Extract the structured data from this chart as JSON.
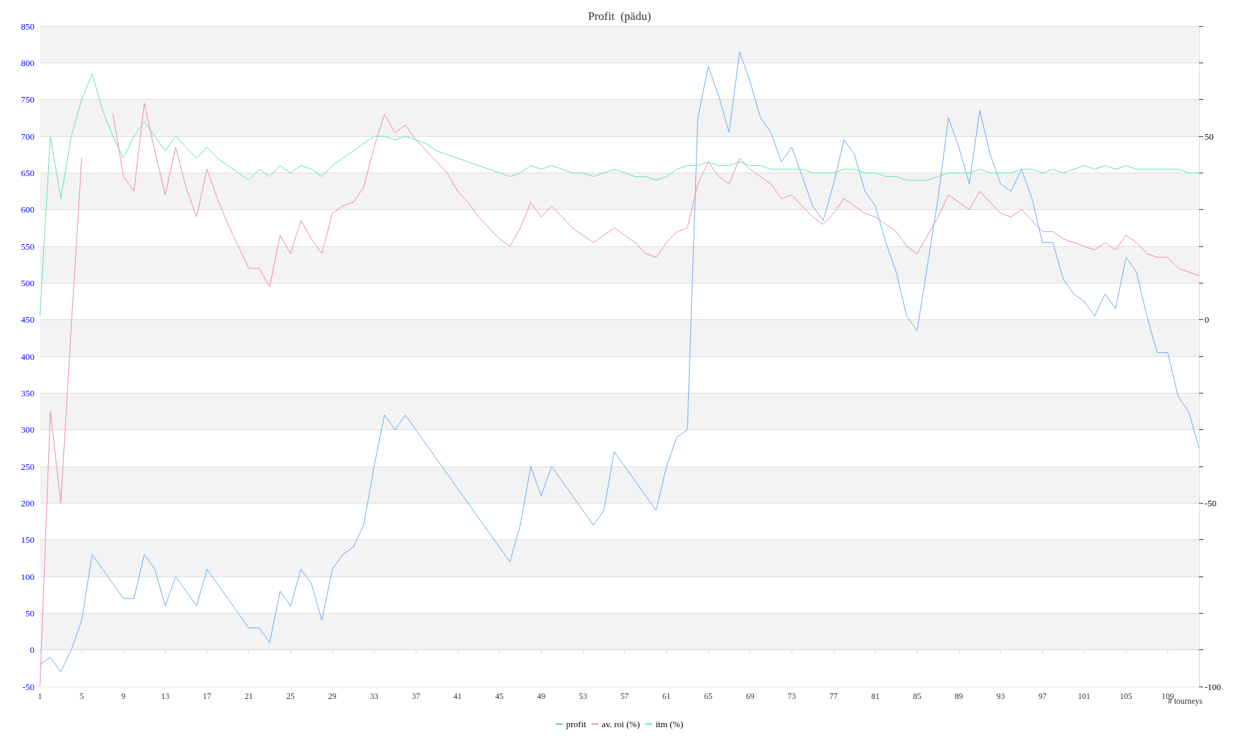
{
  "chart_data": {
    "type": "line",
    "title": "Profit  (pädu)",
    "xlabel": "# tourneys",
    "x": [
      1,
      2,
      3,
      4,
      5,
      6,
      7,
      8,
      9,
      10,
      11,
      12,
      13,
      14,
      15,
      16,
      17,
      18,
      19,
      20,
      21,
      22,
      23,
      24,
      25,
      26,
      27,
      28,
      29,
      30,
      31,
      32,
      33,
      34,
      35,
      36,
      37,
      38,
      39,
      40,
      41,
      42,
      43,
      44,
      45,
      46,
      47,
      48,
      49,
      50,
      51,
      52,
      53,
      54,
      55,
      56,
      57,
      58,
      59,
      60,
      61,
      62,
      63,
      64,
      65,
      66,
      67,
      68,
      69,
      70,
      71,
      72,
      73,
      74,
      75,
      76,
      77,
      78,
      79,
      80,
      81,
      82,
      83,
      84,
      85,
      86,
      87,
      88,
      89,
      90,
      91,
      92,
      93,
      94,
      95,
      96,
      97,
      98,
      99,
      100,
      101,
      102,
      103,
      104,
      105,
      106,
      107,
      108,
      109,
      110,
      111,
      112
    ],
    "series": [
      {
        "name": "profit",
        "color": "#6aaaf0",
        "values": [
          -20,
          -10,
          -30,
          0,
          40,
          130,
          110,
          90,
          70,
          70,
          130,
          110,
          60,
          100,
          80,
          60,
          110,
          90,
          70,
          50,
          30,
          30,
          10,
          80,
          60,
          110,
          90,
          40,
          110,
          130,
          140,
          170,
          250,
          320,
          300,
          320,
          300,
          280,
          260,
          240,
          220,
          200,
          180,
          160,
          140,
          120,
          170,
          250,
          210,
          250,
          230,
          210,
          190,
          170,
          190,
          270,
          250,
          230,
          210,
          190,
          250,
          290,
          300,
          725,
          795,
          755,
          705,
          815,
          775,
          725,
          705,
          665,
          685,
          645,
          605,
          585,
          635,
          695,
          675,
          625,
          605,
          555,
          515,
          455,
          435,
          525,
          615,
          725,
          685,
          635,
          735,
          675,
          635,
          625,
          655,
          615,
          555,
          555,
          505,
          485,
          475,
          455,
          485,
          465,
          535,
          515,
          455,
          405,
          405,
          345,
          325,
          275
        ]
      },
      {
        "name": "av. roi (%)",
        "color": "#f285b5",
        "axis": "y2",
        "values": [
          -100,
          -25,
          -50,
          -2,
          44,
          null,
          null,
          56,
          39,
          35,
          59,
          46,
          34,
          47,
          36,
          28,
          41,
          33,
          26,
          20,
          14,
          14,
          9,
          23,
          18,
          27,
          22,
          18,
          29,
          31,
          32,
          36,
          47,
          56,
          51,
          53,
          49,
          46,
          43,
          40,
          35,
          32,
          28,
          25,
          22,
          20,
          25,
          32,
          28,
          31,
          28,
          25,
          23,
          21,
          23,
          25,
          23,
          21,
          18,
          17,
          21,
          24,
          25,
          37,
          43,
          39,
          37,
          44,
          41,
          39,
          37,
          33,
          34,
          31,
          28,
          26,
          29,
          33,
          31,
          29,
          28,
          26,
          24,
          20,
          18,
          23,
          28,
          34,
          32,
          30,
          35,
          32,
          29,
          28,
          30,
          27,
          24,
          24,
          22,
          21,
          20,
          19,
          21,
          19,
          23,
          21,
          18,
          17,
          17,
          14,
          13,
          12
        ]
      },
      {
        "name": "itm (%)",
        "color": "#5ee3a6",
        "axis": "y2",
        "values": [
          1,
          50,
          33,
          50,
          60,
          67,
          57,
          50,
          44,
          50,
          54,
          50,
          46,
          50,
          47,
          44,
          47,
          44,
          42,
          40,
          38,
          41,
          39,
          42,
          40,
          42,
          41,
          39,
          42,
          44,
          46,
          48,
          50,
          50,
          49,
          50,
          49,
          48,
          46,
          45,
          44,
          43,
          42,
          41,
          40,
          39,
          40,
          42,
          41,
          42,
          41,
          40,
          40,
          39,
          40,
          41,
          40,
          39,
          39,
          38,
          39,
          41,
          42,
          42,
          43,
          42,
          42,
          43,
          42,
          42,
          41,
          41,
          41,
          41,
          40,
          40,
          40,
          41,
          41,
          40,
          40,
          39,
          39,
          38,
          38,
          38,
          39,
          40,
          40,
          40,
          41,
          40,
          40,
          40,
          41,
          41,
          40,
          41,
          40,
          41,
          42,
          41,
          42,
          41,
          42,
          41,
          41,
          41,
          41,
          41,
          40,
          40
        ]
      }
    ],
    "xlim": [
      1,
      112
    ],
    "xticks": [
      1,
      5,
      9,
      13,
      17,
      21,
      25,
      29,
      33,
      37,
      41,
      45,
      49,
      53,
      57,
      61,
      65,
      69,
      73,
      77,
      81,
      85,
      89,
      93,
      97,
      101,
      105,
      109
    ],
    "ylim": [
      -50,
      850
    ],
    "yticks": [
      -50,
      0,
      50,
      100,
      150,
      200,
      250,
      300,
      350,
      400,
      450,
      500,
      550,
      600,
      650,
      700,
      750,
      800,
      850
    ],
    "y2lim": [
      -100,
      80
    ],
    "y2ticks": [
      -100,
      {
        "value": -90,
        "label": null
      },
      {
        "value": -80,
        "label": null
      },
      {
        "value": -70,
        "label": null
      },
      {
        "value": -60,
        "label": null
      },
      -50,
      {
        "value": -40,
        "label": null
      },
      {
        "value": -30,
        "label": null
      },
      {
        "value": -20,
        "label": null
      },
      {
        "value": -10,
        "label": null
      },
      0,
      {
        "value": 10,
        "label": null
      },
      {
        "value": 20,
        "label": null
      },
      {
        "value": 30,
        "label": null
      },
      {
        "value": 40,
        "label": null
      },
      50,
      {
        "value": 60,
        "label": null
      },
      {
        "value": 70,
        "label": null
      },
      {
        "value": 80,
        "label": null
      }
    ],
    "grid": "y",
    "legend": "bottom",
    "marker": "none",
    "line_style": "solid"
  }
}
